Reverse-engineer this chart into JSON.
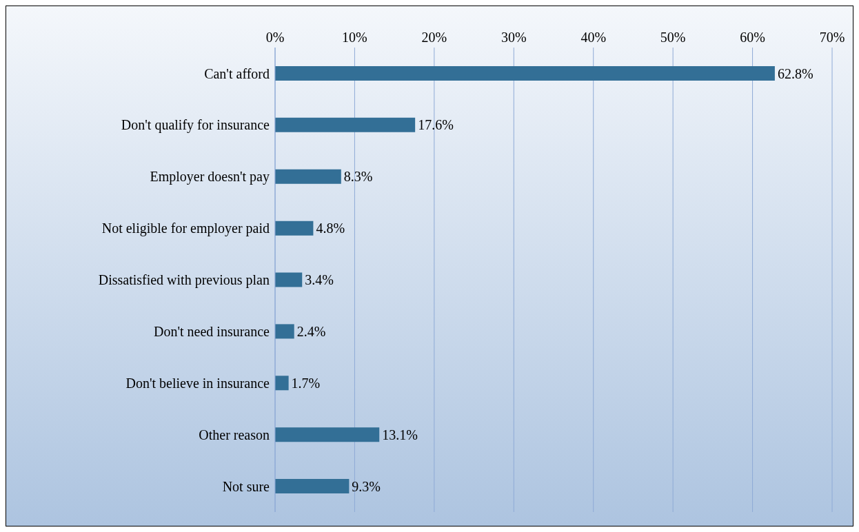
{
  "chart_data": {
    "type": "bar",
    "orientation": "horizontal",
    "categories": [
      "Can't afford",
      "Don't qualify for insurance",
      "Employer doesn't pay",
      "Not eligible for employer paid",
      "Dissatisfied with previous plan",
      "Don't need insurance",
      "Don't believe in insurance",
      "Other reason",
      "Not sure"
    ],
    "values": [
      62.8,
      17.6,
      8.3,
      4.8,
      3.4,
      2.4,
      1.7,
      13.1,
      9.3
    ],
    "value_labels": [
      "62.8%",
      "17.6%",
      "8.3%",
      "4.8%",
      "3.4%",
      "2.4%",
      "1.7%",
      "13.1%",
      "9.3%"
    ],
    "color": "#336f96",
    "xlim": [
      0,
      70
    ],
    "xticks": [
      {
        "value": 0,
        "label": "0%"
      },
      {
        "value": 10,
        "label": "10%"
      },
      {
        "value": 20,
        "label": "20%"
      },
      {
        "value": 30,
        "label": "30%"
      },
      {
        "value": 40,
        "label": "40%"
      },
      {
        "value": 50,
        "label": "50%"
      },
      {
        "value": 60,
        "label": "60%"
      },
      {
        "value": 70,
        "label": "70%"
      }
    ],
    "grid": "x",
    "legend": false
  }
}
